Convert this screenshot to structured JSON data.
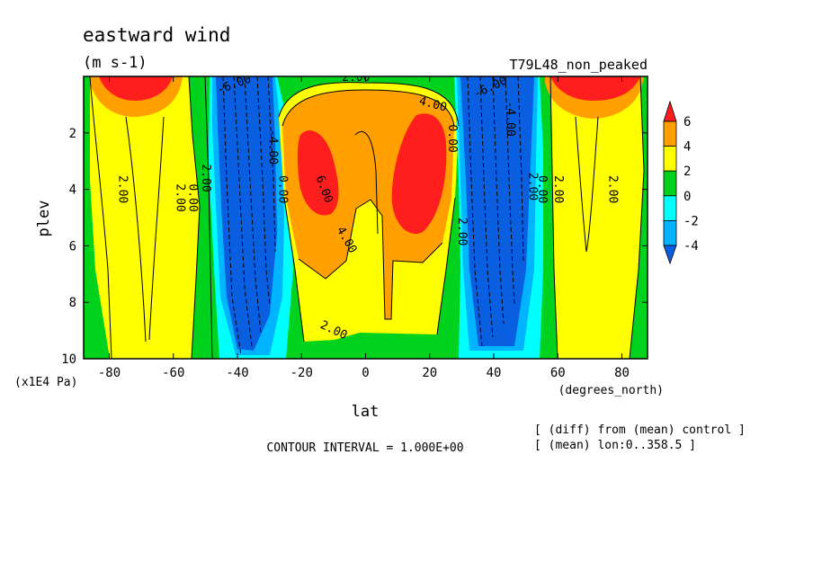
{
  "chart_data": {
    "type": "heatmap",
    "title": "eastward wind",
    "units": "(m s-1)",
    "run_label": "T79L48_non_peaked",
    "xlabel": "lat",
    "xunits": "(degrees_north)",
    "ylabel": "plev",
    "yunits": "(x1E4 Pa)",
    "xlim": [
      -88,
      88
    ],
    "ylim": [
      10,
      0
    ],
    "x_ticks": [
      -80,
      -60,
      -40,
      -20,
      0,
      20,
      40,
      60,
      80
    ],
    "x_tick_labels": [
      "-80",
      "-60",
      "-40",
      "-20",
      "0",
      "20",
      "40",
      "60",
      "80"
    ],
    "y_ticks": [
      2,
      4,
      6,
      8,
      10
    ],
    "y_tick_labels": [
      "2",
      "4",
      "6",
      "8",
      "10"
    ],
    "contour_interval_text": "CONTOUR INTERVAL = 1.000E+00",
    "note_lines": [
      "[ (diff) from (mean) control ]",
      "[ (mean) lon:0..358.5 ]"
    ],
    "colorbar": {
      "levels": [
        -6,
        -4,
        -2,
        0,
        2,
        4,
        6
      ],
      "labels": [
        "6",
        "4",
        "2",
        "0",
        "-2",
        "-4"
      ],
      "colors": [
        "#0a5fe0",
        "#00b4ff",
        "#00ffff",
        "#00d21e",
        "#ffff00",
        "#ffa000",
        "#ff1e1e"
      ]
    },
    "contour_labels": [
      {
        "text": "2.00",
        "lat": -76,
        "p": 4.0,
        "rot": 90
      },
      {
        "text": "2.00",
        "lat": -58,
        "p": 4.3,
        "rot": 90
      },
      {
        "text": "0.00",
        "lat": -54,
        "p": 4.3,
        "rot": 90
      },
      {
        "text": "2.00",
        "lat": -50,
        "p": 3.6,
        "rot": 90
      },
      {
        "text": "-6.00",
        "lat": -41,
        "p": 0.3,
        "rot": -20
      },
      {
        "text": "-4.00",
        "lat": -29,
        "p": 2.5,
        "rot": 90
      },
      {
        "text": "0.00",
        "lat": -26,
        "p": 4.0,
        "rot": 90
      },
      {
        "text": "6.00",
        "lat": -13,
        "p": 4.0,
        "rot": 70
      },
      {
        "text": "4.00",
        "lat": -6,
        "p": 5.8,
        "rot": 60
      },
      {
        "text": "2.00",
        "lat": -10,
        "p": 9.0,
        "rot": 25
      },
      {
        "text": "2.00",
        "lat": -3,
        "p": 0.05,
        "rot": 0
      },
      {
        "text": "4.00",
        "lat": 21,
        "p": 1.0,
        "rot": 15
      },
      {
        "text": "0.00",
        "lat": 27,
        "p": 2.2,
        "rot": 90
      },
      {
        "text": "2.00",
        "lat": 30,
        "p": 5.5,
        "rot": 90
      },
      {
        "text": "-6.00",
        "lat": 39,
        "p": 0.4,
        "rot": -25
      },
      {
        "text": "-4.00",
        "lat": 45,
        "p": 1.5,
        "rot": 90
      },
      {
        "text": "2.00",
        "lat": 52,
        "p": 3.9,
        "rot": 90
      },
      {
        "text": "0.00",
        "lat": 55,
        "p": 4.0,
        "rot": 90
      },
      {
        "text": "2.00",
        "lat": 60,
        "p": 4.0,
        "rot": 90
      },
      {
        "text": "2.00",
        "lat": 77,
        "p": 4.0,
        "rot": 90
      }
    ]
  }
}
